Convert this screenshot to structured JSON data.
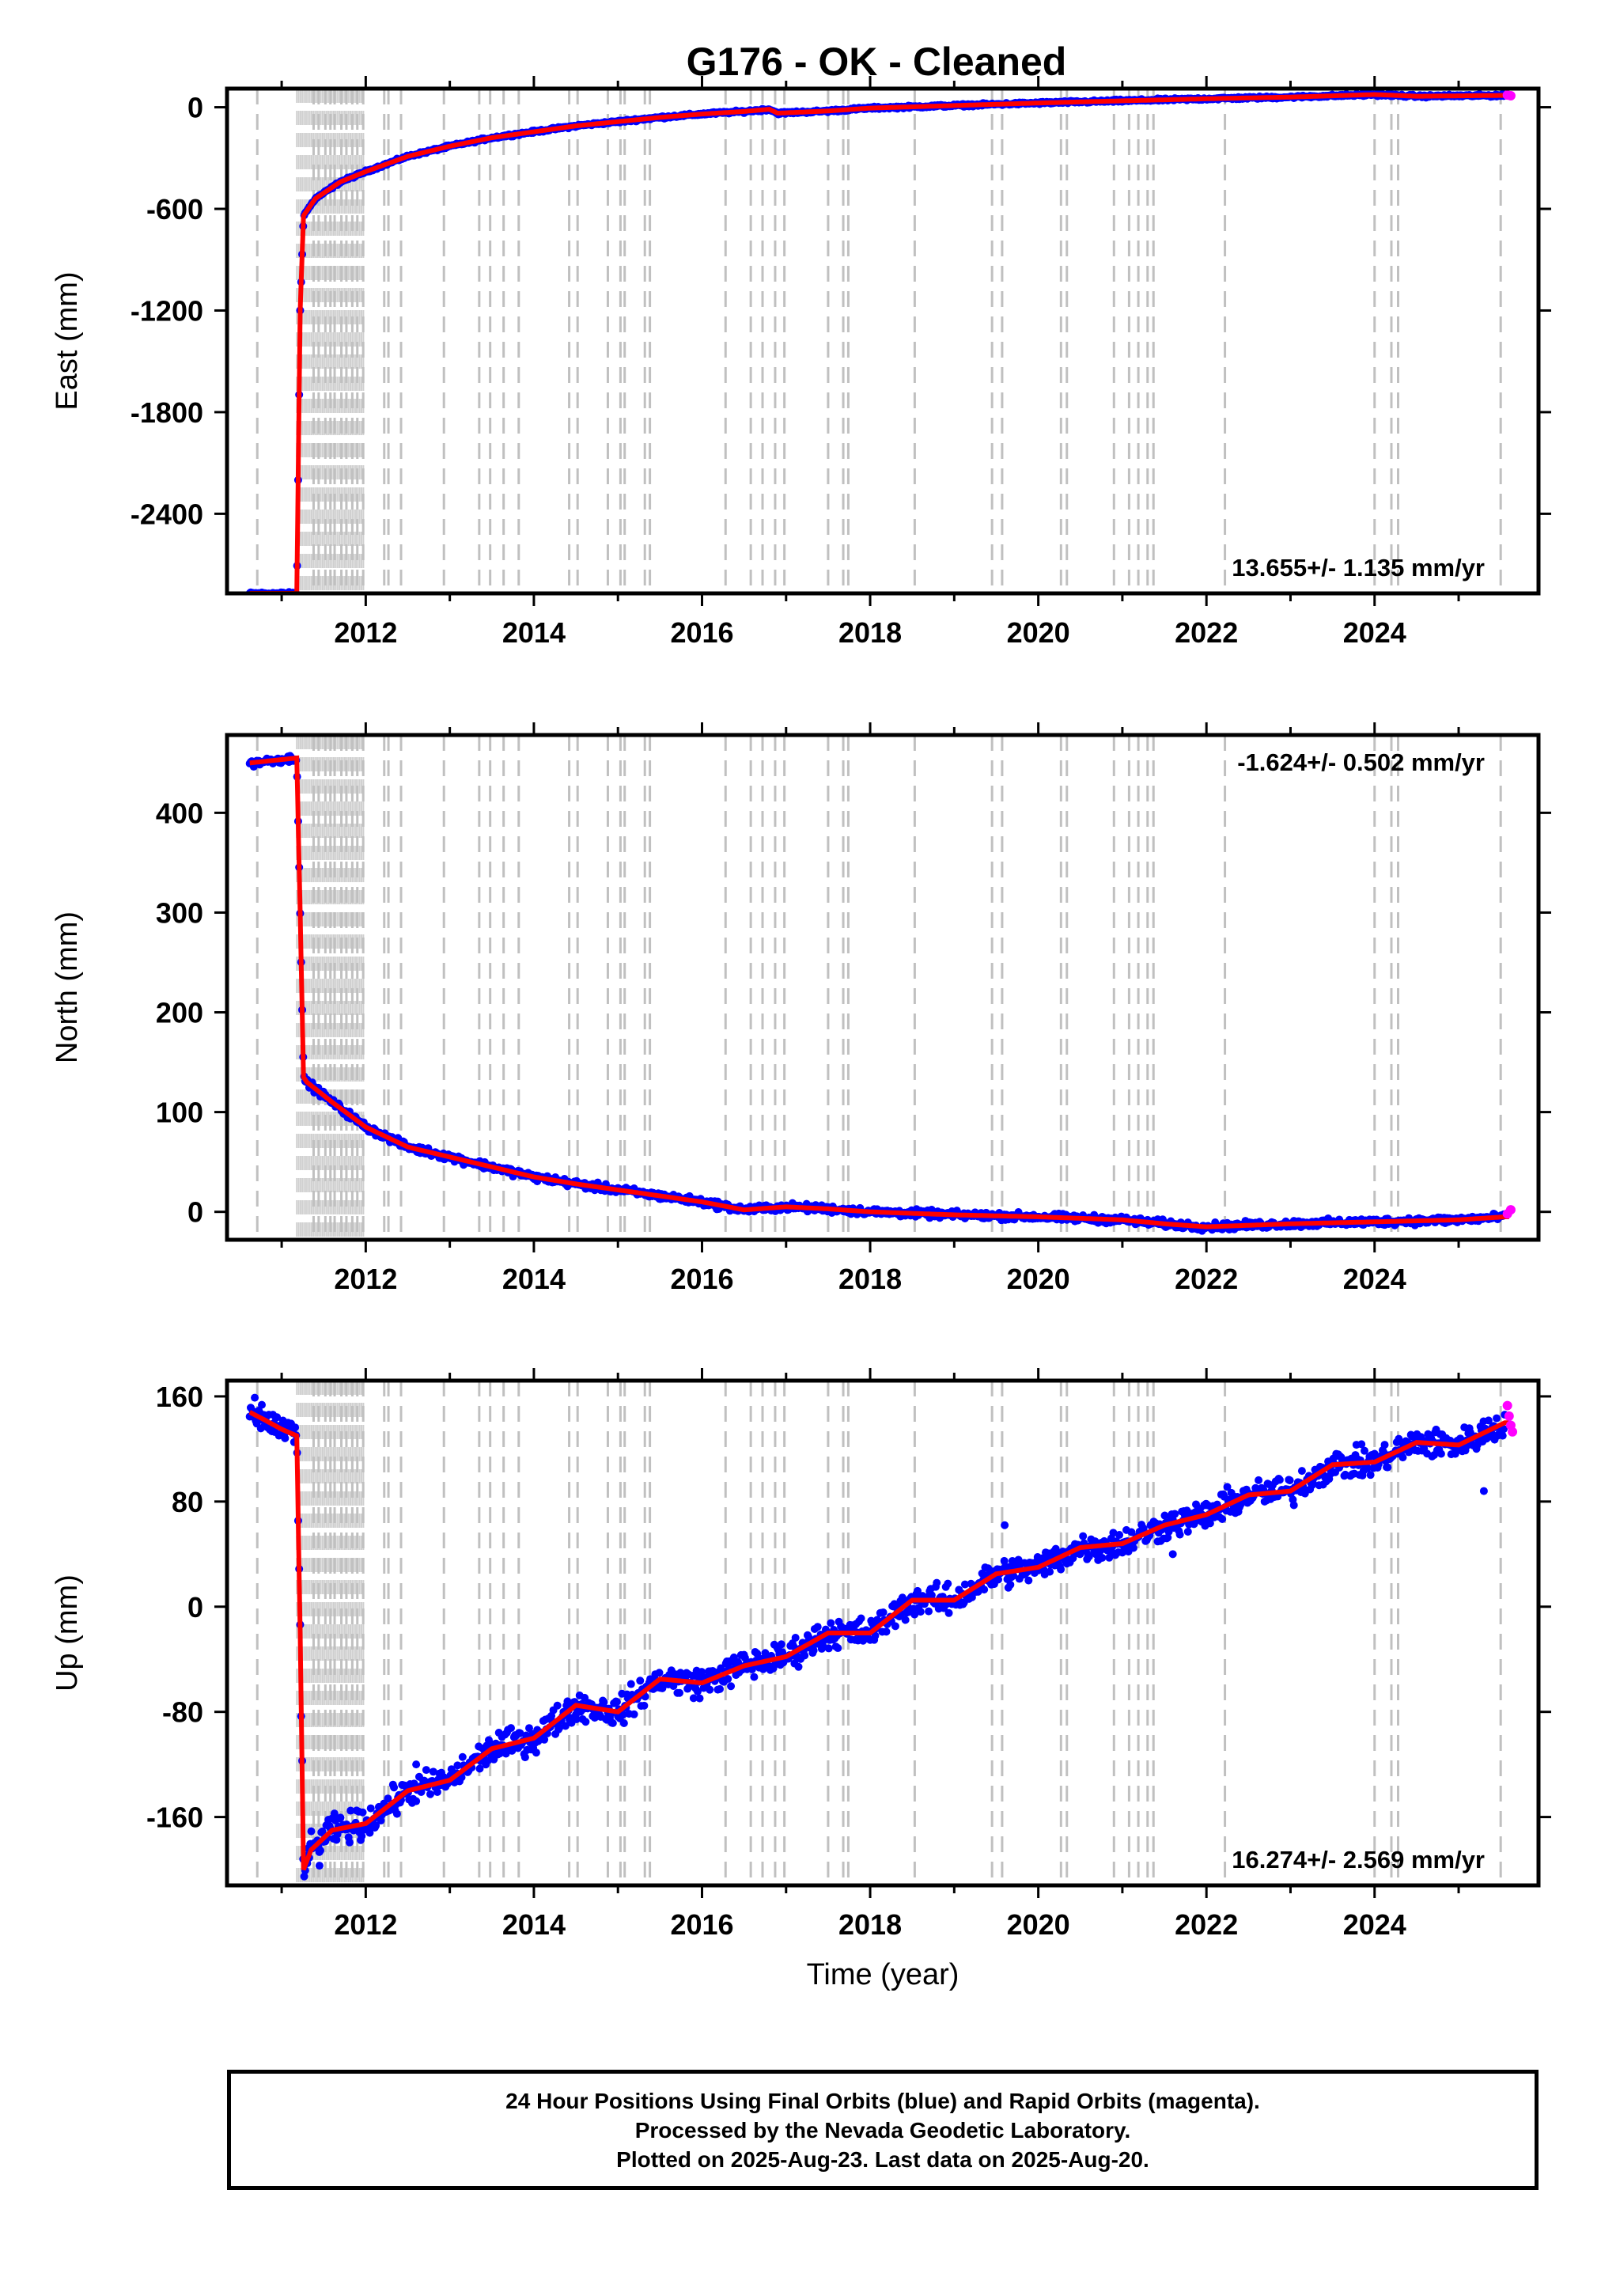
{
  "title": "G176  - OK - Cleaned",
  "footer": {
    "line1": "24 Hour Positions Using Final Orbits (blue) and Rapid Orbits (magenta).",
    "line2": "Processed by the Nevada Geodetic Laboratory.",
    "line3": "Plotted on 2025-Aug-23. Last data on 2025-Aug-20."
  },
  "colors": {
    "final_orbits": "#0000ff",
    "rapid_orbits": "#ff00ff",
    "model": "#ff0000",
    "equipment_lines": "#c8c8c8"
  },
  "chart_data": [
    {
      "type": "scatter",
      "component": "east",
      "title": "G176  - OK - Cleaned",
      "xlabel": "",
      "ylabel": "East (mm)",
      "xlim": [
        2010.35,
        2025.95
      ],
      "ylim": [
        -2870,
        110
      ],
      "xticks": [
        2012,
        2014,
        2016,
        2018,
        2020,
        2022,
        2024
      ],
      "yticks": [
        -2400,
        -1800,
        -1200,
        -600,
        0
      ],
      "rate_label": "13.655+/- 1.135 mm/yr",
      "rate_position": "bottom-right",
      "noise_mm": 6,
      "series": [
        {
          "role": "final",
          "color": "#0000ff",
          "x": [
            2010.62,
            2011.18,
            2011.22,
            2011.26,
            2011.4,
            2011.7,
            2012.0,
            2012.5,
            2013.0,
            2013.5,
            2014.0,
            2014.5,
            2015.0,
            2015.5,
            2016.0,
            2016.5,
            2016.8,
            2016.9,
            2017.5,
            2018.0,
            2019.0,
            2020.0,
            2021.0,
            2022.0,
            2023.0,
            2024.0,
            2024.5,
            2025.55
          ],
          "y": [
            -2870,
            -2870,
            -1200,
            -640,
            -540,
            -440,
            -380,
            -290,
            -230,
            -180,
            -145,
            -110,
            -85,
            -60,
            -40,
            -25,
            -12,
            -35,
            -22,
            -5,
            10,
            25,
            38,
            50,
            60,
            75,
            65,
            70
          ]
        },
        {
          "role": "rapid",
          "color": "#ff00ff",
          "x": [
            2025.58,
            2025.62
          ],
          "y": [
            72,
            68
          ]
        }
      ]
    },
    {
      "type": "scatter",
      "component": "north",
      "title": "",
      "xlabel": "",
      "ylabel": "North (mm)",
      "xlim": [
        2010.35,
        2025.95
      ],
      "ylim": [
        -28,
        478
      ],
      "xticks": [
        2012,
        2014,
        2016,
        2018,
        2020,
        2022,
        2024
      ],
      "yticks": [
        0,
        100,
        200,
        300,
        400
      ],
      "rate_label": "-1.624+/- 0.502 mm/yr",
      "rate_position": "top-right",
      "noise_mm": 3,
      "series": [
        {
          "role": "final",
          "color": "#0000ff",
          "x": [
            2010.62,
            2011.18,
            2011.22,
            2011.26,
            2011.3,
            2011.6,
            2012.0,
            2012.5,
            2013.0,
            2013.5,
            2014.0,
            2014.5,
            2015.0,
            2015.5,
            2016.0,
            2016.5,
            2017.0,
            2017.5,
            2018.0,
            2019.0,
            2020.0,
            2021.0,
            2021.5,
            2022.0,
            2023.0,
            2024.0,
            2025.0,
            2025.55
          ],
          "y": [
            450,
            455,
            300,
            135,
            130,
            110,
            85,
            65,
            55,
            45,
            35,
            28,
            22,
            16,
            10,
            2,
            5,
            3,
            0,
            -3,
            -5,
            -8,
            -12,
            -15,
            -12,
            -10,
            -8,
            -5
          ]
        },
        {
          "role": "rapid",
          "color": "#ff00ff",
          "x": [
            2025.58,
            2025.62
          ],
          "y": [
            -2,
            2
          ]
        }
      ]
    },
    {
      "type": "scatter",
      "component": "up",
      "title": "",
      "xlabel": "Time (year)",
      "ylabel": "Up (mm)",
      "xlim": [
        2010.35,
        2025.95
      ],
      "ylim": [
        -212,
        172
      ],
      "xticks": [
        2012,
        2014,
        2016,
        2018,
        2020,
        2022,
        2024
      ],
      "yticks": [
        -160,
        -80,
        0,
        80,
        160
      ],
      "rate_label": "16.274+/- 2.569 mm/yr",
      "rate_position": "bottom-right",
      "noise_mm": 9,
      "series": [
        {
          "role": "final",
          "color": "#0000ff",
          "x": [
            2010.62,
            2010.8,
            2011.0,
            2011.18,
            2011.22,
            2011.26,
            2011.35,
            2011.6,
            2012.0,
            2012.5,
            2013.0,
            2013.5,
            2014.0,
            2014.5,
            2015.0,
            2015.5,
            2016.0,
            2016.5,
            2017.0,
            2017.5,
            2018.0,
            2018.5,
            2019.0,
            2019.5,
            2020.0,
            2020.5,
            2021.0,
            2021.5,
            2022.0,
            2022.5,
            2023.0,
            2023.5,
            2024.0,
            2024.5,
            2025.0,
            2025.55
          ],
          "y": [
            148,
            142,
            135,
            130,
            -20,
            -200,
            -185,
            -170,
            -165,
            -140,
            -132,
            -108,
            -100,
            -75,
            -80,
            -55,
            -58,
            -45,
            -38,
            -20,
            -20,
            5,
            5,
            25,
            30,
            45,
            48,
            62,
            70,
            85,
            88,
            108,
            110,
            125,
            123,
            140
          ]
        },
        {
          "role": "rapid",
          "color": "#ff00ff",
          "x": [
            2025.58,
            2025.6,
            2025.62,
            2025.64
          ],
          "y": [
            153,
            145,
            138,
            133
          ]
        }
      ]
    }
  ],
  "equipment_change_years": [
    2010.71,
    2011.38,
    2011.44,
    2011.52,
    2011.58,
    2011.63,
    2011.71,
    2011.77,
    2011.84,
    2011.9,
    2011.97,
    2012.22,
    2012.27,
    2012.42,
    2012.93,
    2013.35,
    2013.48,
    2013.64,
    2013.82,
    2014.42,
    2014.52,
    2014.88,
    2015.03,
    2015.08,
    2015.32,
    2015.38,
    2016.28,
    2016.58,
    2016.72,
    2016.87,
    2016.98,
    2017.5,
    2017.68,
    2017.74,
    2018.53,
    2019.45,
    2019.57,
    2020.27,
    2020.34,
    2020.9,
    2021.08,
    2021.19,
    2021.3,
    2021.37,
    2022.22,
    2024.0,
    2024.2,
    2024.28,
    2025.5
  ],
  "dense_band_years": [
    2011.18,
    2011.98
  ]
}
